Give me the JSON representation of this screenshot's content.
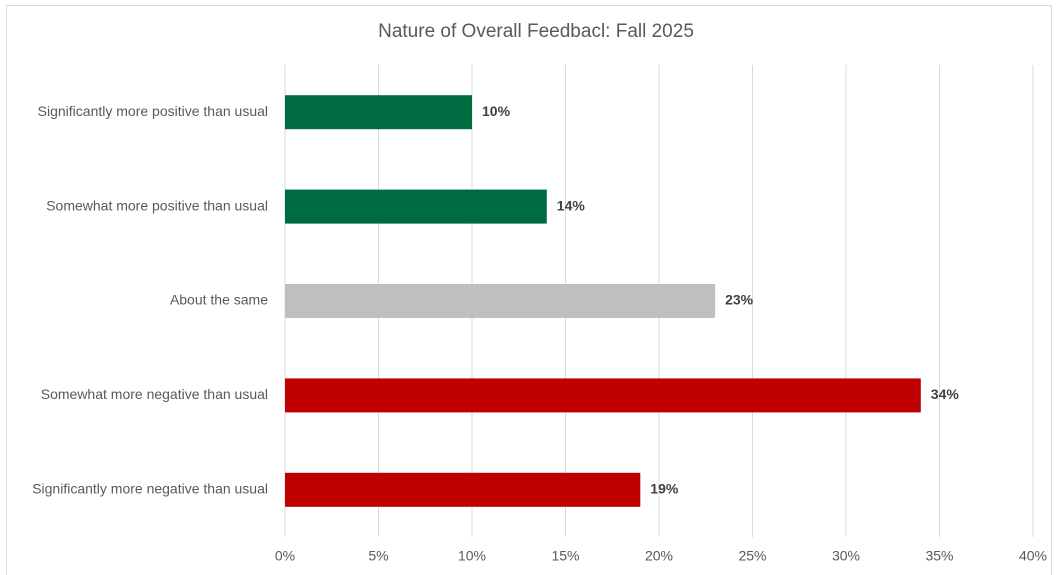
{
  "chart_data": {
    "type": "bar",
    "orientation": "horizontal",
    "title": "Nature of Overall Feedbacl: Fall 2025",
    "categories": [
      "Significantly more positive than usual",
      "Somewhat more positive than usual",
      "About the same",
      "Somewhat more negative than usual",
      "Significantly more negative than usual"
    ],
    "values": [
      10,
      14,
      23,
      34,
      19
    ],
    "value_labels": [
      "10%",
      "14%",
      "23%",
      "34%",
      "19%"
    ],
    "colors": [
      "#006a40",
      "#006a40",
      "#bfbfbf",
      "#c00000",
      "#c00000"
    ],
    "xlim": [
      0,
      40
    ],
    "xticks": [
      {
        "value": 0,
        "label": "0%"
      },
      {
        "value": 5,
        "label": "5%"
      },
      {
        "value": 10,
        "label": "10%"
      },
      {
        "value": 15,
        "label": "15%"
      },
      {
        "value": 20,
        "label": "20%"
      },
      {
        "value": 25,
        "label": "25%"
      },
      {
        "value": 30,
        "label": "30%"
      },
      {
        "value": 35,
        "label": "35%"
      },
      {
        "value": 40,
        "label": "40%"
      }
    ],
    "grid": true
  }
}
